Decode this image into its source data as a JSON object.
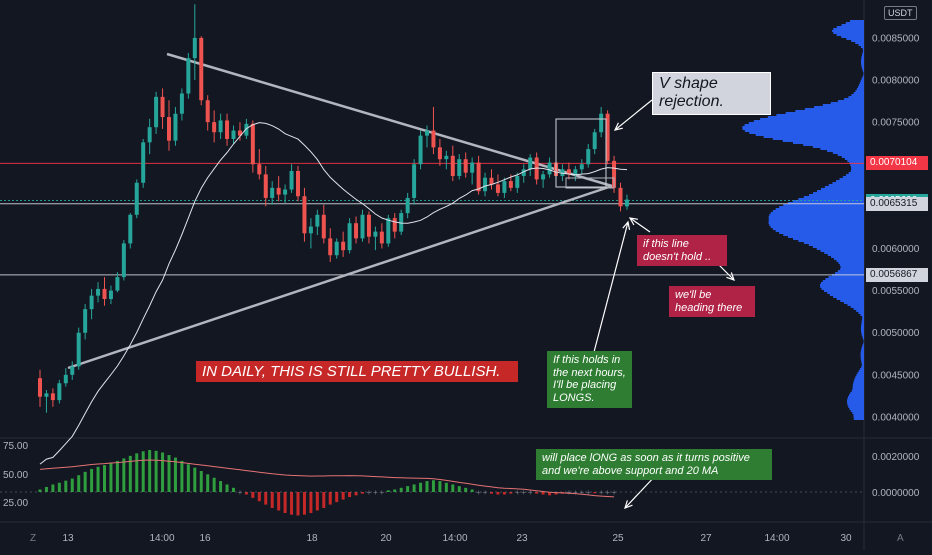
{
  "chart_data": {
    "type": "candlestick",
    "currency": "USDT",
    "price_axis": {
      "range": [
        0.00375,
        0.00895
      ],
      "ticks": [
        "0.0085000",
        "0.0080000",
        "0.0075000",
        "0.0070000",
        "0.0060000",
        "0.0055000",
        "0.0050000",
        "0.0045000",
        "0.0040000"
      ]
    },
    "time_axis": {
      "ticks": [
        "13",
        "14:00",
        "16",
        "18",
        "20",
        "14:00",
        "23",
        "25",
        "27",
        "14:00",
        "30"
      ]
    },
    "candles": [
      [
        0.00446,
        0.00456,
        0.00412,
        0.00424
      ],
      [
        0.00424,
        0.00432,
        0.00405,
        0.00428
      ],
      [
        0.00428,
        0.00434,
        0.00412,
        0.0042
      ],
      [
        0.0042,
        0.00444,
        0.00416,
        0.0044
      ],
      [
        0.0044,
        0.00458,
        0.00436,
        0.0045
      ],
      [
        0.0045,
        0.00466,
        0.00444,
        0.0046
      ],
      [
        0.0046,
        0.00506,
        0.00456,
        0.005
      ],
      [
        0.005,
        0.00534,
        0.00492,
        0.00528
      ],
      [
        0.00528,
        0.00552,
        0.00516,
        0.00544
      ],
      [
        0.00544,
        0.0056,
        0.00536,
        0.00552
      ],
      [
        0.00552,
        0.00566,
        0.00532,
        0.0054
      ],
      [
        0.0054,
        0.00556,
        0.00534,
        0.0055
      ],
      [
        0.0055,
        0.00572,
        0.00548,
        0.00566
      ],
      [
        0.00566,
        0.0061,
        0.00562,
        0.00606
      ],
      [
        0.00606,
        0.00642,
        0.006,
        0.0064
      ],
      [
        0.0064,
        0.00682,
        0.00636,
        0.00678
      ],
      [
        0.00678,
        0.0073,
        0.00672,
        0.00726
      ],
      [
        0.00726,
        0.00754,
        0.00712,
        0.00744
      ],
      [
        0.00744,
        0.00786,
        0.00736,
        0.0078
      ],
      [
        0.0078,
        0.0079,
        0.00742,
        0.00756
      ],
      [
        0.00756,
        0.00776,
        0.00716,
        0.00728
      ],
      [
        0.00728,
        0.00768,
        0.00722,
        0.0076
      ],
      [
        0.0076,
        0.0079,
        0.00752,
        0.00784
      ],
      [
        0.00784,
        0.00832,
        0.00778,
        0.00826
      ],
      [
        0.00826,
        0.0089,
        0.008,
        0.0085
      ],
      [
        0.0085,
        0.00852,
        0.0077,
        0.00776
      ],
      [
        0.00776,
        0.00782,
        0.0074,
        0.0075
      ],
      [
        0.0075,
        0.00764,
        0.00726,
        0.00738
      ],
      [
        0.00738,
        0.0076,
        0.0073,
        0.00752
      ],
      [
        0.00752,
        0.0076,
        0.00722,
        0.0073
      ],
      [
        0.0073,
        0.00746,
        0.00724,
        0.0074
      ],
      [
        0.0074,
        0.0075,
        0.00728,
        0.00734
      ],
      [
        0.00734,
        0.00754,
        0.0073,
        0.00748
      ],
      [
        0.00748,
        0.00752,
        0.0069,
        0.007
      ],
      [
        0.007,
        0.00718,
        0.00682,
        0.00688
      ],
      [
        0.00688,
        0.00698,
        0.0065,
        0.0066
      ],
      [
        0.0066,
        0.0068,
        0.00652,
        0.00672
      ],
      [
        0.00672,
        0.00686,
        0.00656,
        0.00664
      ],
      [
        0.00664,
        0.00676,
        0.00654,
        0.0067
      ],
      [
        0.0067,
        0.007,
        0.00666,
        0.00692
      ],
      [
        0.00692,
        0.00698,
        0.00656,
        0.00662
      ],
      [
        0.00662,
        0.00672,
        0.00608,
        0.00618
      ],
      [
        0.00618,
        0.00636,
        0.006,
        0.00626
      ],
      [
        0.00626,
        0.00646,
        0.00616,
        0.0064
      ],
      [
        0.0064,
        0.00652,
        0.00606,
        0.00612
      ],
      [
        0.00612,
        0.00624,
        0.00584,
        0.00592
      ],
      [
        0.00592,
        0.00612,
        0.00588,
        0.00608
      ],
      [
        0.00608,
        0.0062,
        0.0059,
        0.00598
      ],
      [
        0.00598,
        0.00636,
        0.00594,
        0.0063
      ],
      [
        0.0063,
        0.00638,
        0.00606,
        0.00612
      ],
      [
        0.00612,
        0.00646,
        0.00608,
        0.0064
      ],
      [
        0.0064,
        0.00644,
        0.00606,
        0.00614
      ],
      [
        0.00614,
        0.00626,
        0.00598,
        0.0062
      ],
      [
        0.0062,
        0.0063,
        0.006,
        0.00606
      ],
      [
        0.00606,
        0.0064,
        0.00602,
        0.00636
      ],
      [
        0.00636,
        0.00642,
        0.00612,
        0.0062
      ],
      [
        0.0062,
        0.00646,
        0.00616,
        0.00642
      ],
      [
        0.00642,
        0.00666,
        0.00636,
        0.0066
      ],
      [
        0.0066,
        0.00706,
        0.00652,
        0.007
      ],
      [
        0.007,
        0.0074,
        0.00694,
        0.00734
      ],
      [
        0.00734,
        0.00746,
        0.0072,
        0.0074
      ],
      [
        0.0074,
        0.00768,
        0.00712,
        0.0072
      ],
      [
        0.0072,
        0.0073,
        0.00698,
        0.00706
      ],
      [
        0.00706,
        0.00716,
        0.00694,
        0.0071
      ],
      [
        0.0071,
        0.00722,
        0.0068,
        0.00686
      ],
      [
        0.00686,
        0.00712,
        0.00682,
        0.00706
      ],
      [
        0.00706,
        0.00714,
        0.00684,
        0.0069
      ],
      [
        0.0069,
        0.00708,
        0.00676,
        0.00702
      ],
      [
        0.00702,
        0.0071,
        0.00664,
        0.00668
      ],
      [
        0.00668,
        0.0069,
        0.00662,
        0.00684
      ],
      [
        0.00684,
        0.00694,
        0.0067,
        0.00676
      ],
      [
        0.00676,
        0.00688,
        0.00662,
        0.00666
      ],
      [
        0.00666,
        0.00684,
        0.0066,
        0.0068
      ],
      [
        0.0068,
        0.00688,
        0.00668,
        0.00672
      ],
      [
        0.00672,
        0.0069,
        0.00666,
        0.00686
      ],
      [
        0.00686,
        0.007,
        0.00678,
        0.00694
      ],
      [
        0.00694,
        0.00712,
        0.00686,
        0.00708
      ],
      [
        0.00708,
        0.00714,
        0.00676,
        0.00682
      ],
      [
        0.00682,
        0.00692,
        0.00672,
        0.00688
      ],
      [
        0.00688,
        0.00708,
        0.00684,
        0.00702
      ],
      [
        0.00702,
        0.0071,
        0.00682,
        0.00686
      ],
      [
        0.00686,
        0.007,
        0.0068,
        0.00694
      ],
      [
        0.00694,
        0.00702,
        0.00682,
        0.00688
      ],
      [
        0.00688,
        0.00698,
        0.0068,
        0.00694
      ],
      [
        0.00694,
        0.00706,
        0.00688,
        0.007
      ],
      [
        0.007,
        0.00724,
        0.00696,
        0.00718
      ],
      [
        0.00718,
        0.00742,
        0.00712,
        0.00738
      ],
      [
        0.00738,
        0.00768,
        0.00732,
        0.0076
      ],
      [
        0.0076,
        0.00764,
        0.007,
        0.00704
      ],
      [
        0.00704,
        0.0071,
        0.00666,
        0.00672
      ],
      [
        0.00672,
        0.00678,
        0.00644,
        0.0065
      ],
      [
        0.0065,
        0.00664,
        0.00646,
        0.00658
      ]
    ],
    "sma20_label": "20 MA",
    "levels": [
      {
        "price": 0.0070104,
        "label": "0.0070104",
        "color": "#f23645"
      },
      {
        "price": 0.006569,
        "label": "0.0065690",
        "color": "#26a69a"
      },
      {
        "price": 0.0065315,
        "label": "0.0065315",
        "color": "#d1d4dc"
      },
      {
        "price": 0.0056867,
        "label": "0.0056867",
        "color": "#d1d4dc"
      }
    ],
    "volume_profile_color": "#2962ff",
    "oscillator": {
      "left_ticks": [
        "75.00",
        "50.00",
        "25.00"
      ],
      "right_ticks": [
        "0.0020000",
        "0.0000000"
      ],
      "values": [
        0.06,
        0.12,
        0.18,
        0.22,
        0.27,
        0.32,
        0.4,
        0.48,
        0.55,
        0.6,
        0.64,
        0.7,
        0.74,
        0.8,
        0.86,
        0.92,
        0.97,
        1.0,
        0.98,
        0.94,
        0.88,
        0.82,
        0.74,
        0.66,
        0.58,
        0.5,
        0.42,
        0.34,
        0.26,
        0.18,
        0.1,
        0.02,
        -0.06,
        -0.14,
        -0.22,
        -0.3,
        -0.38,
        -0.44,
        -0.5,
        -0.54,
        -0.56,
        -0.54,
        -0.5,
        -0.44,
        -0.38,
        -0.3,
        -0.24,
        -0.18,
        -0.12,
        -0.08,
        -0.04,
        -0.02,
        0.0,
        0.02,
        0.04,
        0.06,
        0.1,
        0.14,
        0.18,
        0.22,
        0.26,
        0.28,
        0.26,
        0.22,
        0.18,
        0.14,
        0.1,
        0.06,
        0.02,
        -0.02,
        -0.04,
        -0.06,
        -0.06,
        -0.04,
        -0.02,
        0.0,
        -0.02,
        -0.04,
        -0.06,
        -0.08,
        -0.06,
        -0.04,
        -0.02,
        0.0,
        0.0,
        -0.02,
        -0.03,
        -0.02,
        -0.01,
        0.0
      ]
    }
  },
  "annotations": {
    "v_shape": "V shape rejection.",
    "line_hold": "if this line doesn't hold ..",
    "heading": "we'll be heading there",
    "daily": "IN DAILY, THIS IS STILL PRETTY BULLISH.",
    "longs": "If this holds in the next hours, I'll be placing LONGS.",
    "positive": "will place lONG as soon as it turns positive and we're above support and 20 MA"
  },
  "bottom_icons": {
    "zoom": "Z",
    "auto": "A"
  }
}
